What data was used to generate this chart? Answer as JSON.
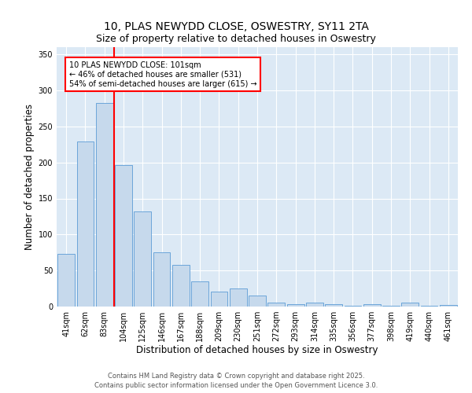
{
  "title": "10, PLAS NEWYDD CLOSE, OSWESTRY, SY11 2TA",
  "subtitle": "Size of property relative to detached houses in Oswestry",
  "xlabel": "Distribution of detached houses by size in Oswestry",
  "ylabel": "Number of detached properties",
  "categories": [
    "41sqm",
    "62sqm",
    "83sqm",
    "104sqm",
    "125sqm",
    "146sqm",
    "167sqm",
    "188sqm",
    "209sqm",
    "230sqm",
    "251sqm",
    "272sqm",
    "293sqm",
    "314sqm",
    "335sqm",
    "356sqm",
    "377sqm",
    "398sqm",
    "419sqm",
    "440sqm",
    "461sqm"
  ],
  "values": [
    73,
    229,
    283,
    196,
    132,
    75,
    58,
    35,
    21,
    25,
    15,
    5,
    3,
    5,
    3,
    1,
    3,
    1,
    5,
    1,
    2
  ],
  "bar_color": "#c6d9ec",
  "bar_edge_color": "#5b9bd5",
  "vline_color": "red",
  "annotation_text": "10 PLAS NEWYDD CLOSE: 101sqm\n← 46% of detached houses are smaller (531)\n54% of semi-detached houses are larger (615) →",
  "annotation_box_color": "white",
  "annotation_box_edge_color": "red",
  "ylim": [
    0,
    360
  ],
  "yticks": [
    0,
    50,
    100,
    150,
    200,
    250,
    300,
    350
  ],
  "bg_color": "#dce9f5",
  "footer": "Contains HM Land Registry data © Crown copyright and database right 2025.\nContains public sector information licensed under the Open Government Licence 3.0.",
  "title_fontsize": 10,
  "subtitle_fontsize": 9,
  "xlabel_fontsize": 8.5,
  "ylabel_fontsize": 8.5,
  "tick_fontsize": 7,
  "annotation_fontsize": 7,
  "footer_fontsize": 6
}
